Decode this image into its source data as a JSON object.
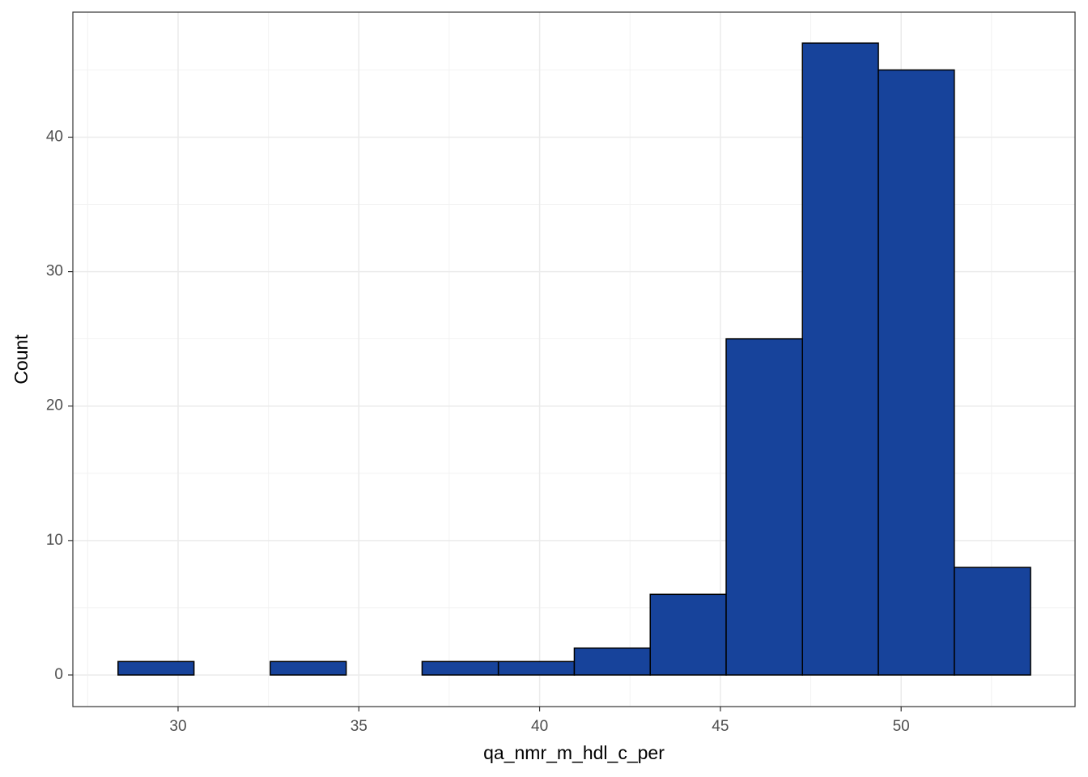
{
  "chart_data": {
    "type": "histogram",
    "xlabel": "qa_nmr_m_hdl_c_per",
    "ylabel": "Count",
    "bins": [
      28.34,
      30.44,
      32.55,
      34.65,
      36.75,
      38.86,
      40.96,
      43.06,
      45.16,
      47.27,
      49.37,
      51.47,
      53.58
    ],
    "values": [
      1,
      0,
      1,
      0,
      1,
      1,
      2,
      6,
      25,
      47,
      45,
      8
    ],
    "color": "#17439b",
    "xlim": [
      27.09,
      54.81
    ],
    "xticks": [
      30,
      35,
      40,
      45,
      50
    ],
    "ylim": [
      -2.35,
      49.3
    ],
    "yticks": [
      0,
      10,
      20,
      30,
      40
    ],
    "grid": true
  }
}
